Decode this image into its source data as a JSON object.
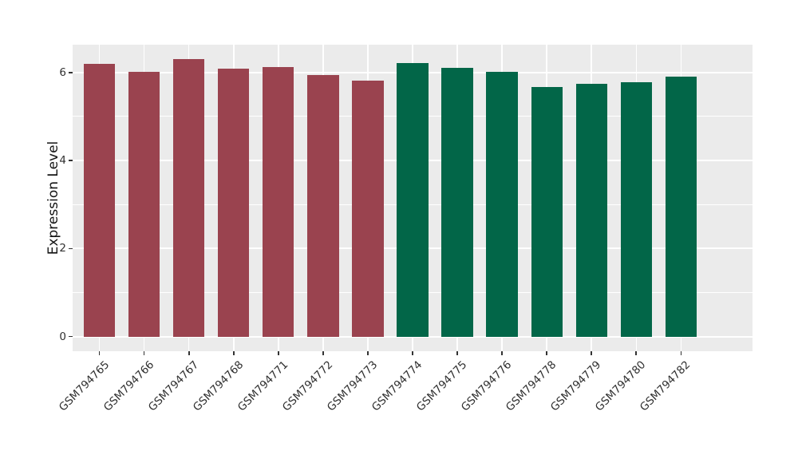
{
  "chart_data": {
    "type": "bar",
    "title": "",
    "xlabel": "",
    "ylabel": "Expression Level",
    "categories": [
      "GSM794765",
      "GSM794766",
      "GSM794767",
      "GSM794768",
      "GSM794771",
      "GSM794772",
      "GSM794773",
      "GSM794774",
      "GSM794775",
      "GSM794776",
      "GSM794778",
      "GSM794779",
      "GSM794780",
      "GSM794782"
    ],
    "values": [
      6.19,
      6.02,
      6.3,
      6.08,
      6.13,
      5.94,
      5.81,
      6.21,
      6.1,
      6.02,
      5.67,
      5.74,
      5.78,
      5.9
    ],
    "groups": [
      "group1",
      "group1",
      "group1",
      "group1",
      "group1",
      "group1",
      "group1",
      "group2",
      "group2",
      "group2",
      "group2",
      "group2",
      "group2",
      "group2"
    ],
    "group_colors": {
      "group1": "#9a434f",
      "group2": "#026648"
    },
    "ylim": [
      0,
      6.63
    ],
    "yticks_major": [
      0,
      2,
      4,
      6
    ],
    "yticks_minor": [
      1,
      3,
      5
    ],
    "ytick_labels": [
      "0",
      "2",
      "4",
      "6"
    ],
    "grid": true,
    "legend_position": "none"
  },
  "style": {
    "figure_bg": "#ffffff",
    "panel_bg": "#ebebeb",
    "grid_color": "#ffffff",
    "axis_text_color": "#303030",
    "axis_title_color": "#141414",
    "tick_mark_color": "#333333"
  }
}
